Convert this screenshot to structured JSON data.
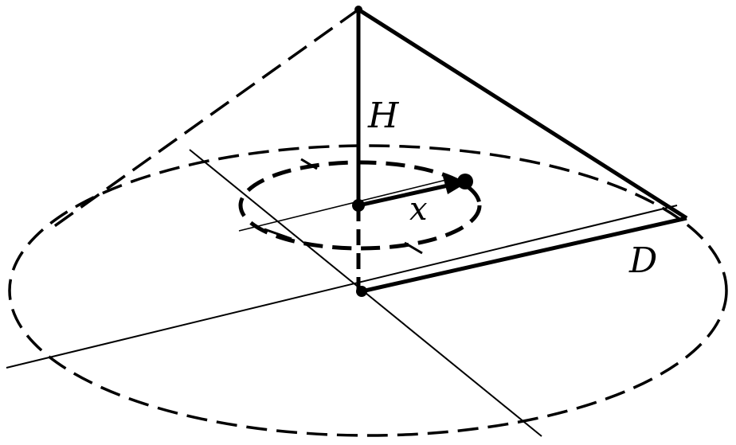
{
  "diagram": {
    "labels": {
      "height": "H",
      "radius": "D",
      "distance": "x"
    },
    "colors": {
      "ink": "#000000",
      "background": "#ffffff"
    }
  }
}
